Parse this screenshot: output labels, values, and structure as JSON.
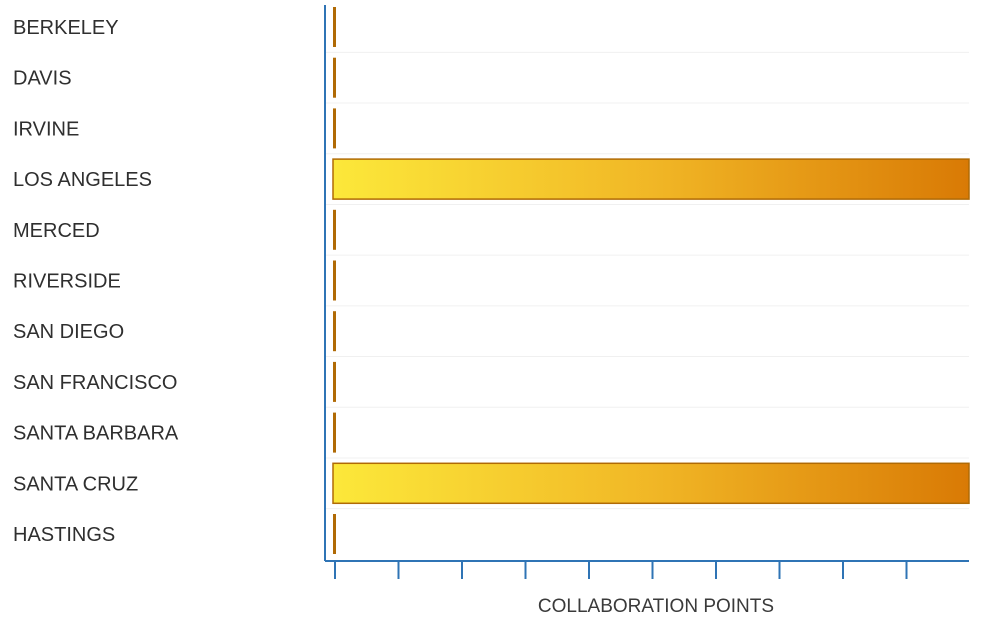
{
  "chart_data": {
    "type": "bar",
    "orientation": "horizontal",
    "categories": [
      "BERKELEY",
      "DAVIS",
      "IRVINE",
      "LOS ANGELES",
      "MERCED",
      "RIVERSIDE",
      "SAN DIEGO",
      "SAN FRANCISCO",
      "SANTA BARBARA",
      "SANTA CRUZ",
      "HASTINGS"
    ],
    "values": [
      0,
      0,
      0,
      1,
      0,
      0,
      0,
      0,
      0,
      1,
      0
    ],
    "title": "",
    "xlabel": "COLLABORATION POINTS",
    "ylabel": "",
    "xlim": [
      0,
      1
    ],
    "x_tick_count": 10,
    "x_tick_labels_shown": false,
    "grid": "horizontal",
    "legend": "none"
  },
  "colors": {
    "axis": "#2f74b5",
    "gridline": "#f0f0f0",
    "bar_gradient_start": "#fce83a",
    "bar_gradient_mid": "#f1b726",
    "bar_gradient_end": "#d97a05",
    "bar_stroke": "#b06a05",
    "zero_bar": "#b06a05"
  }
}
